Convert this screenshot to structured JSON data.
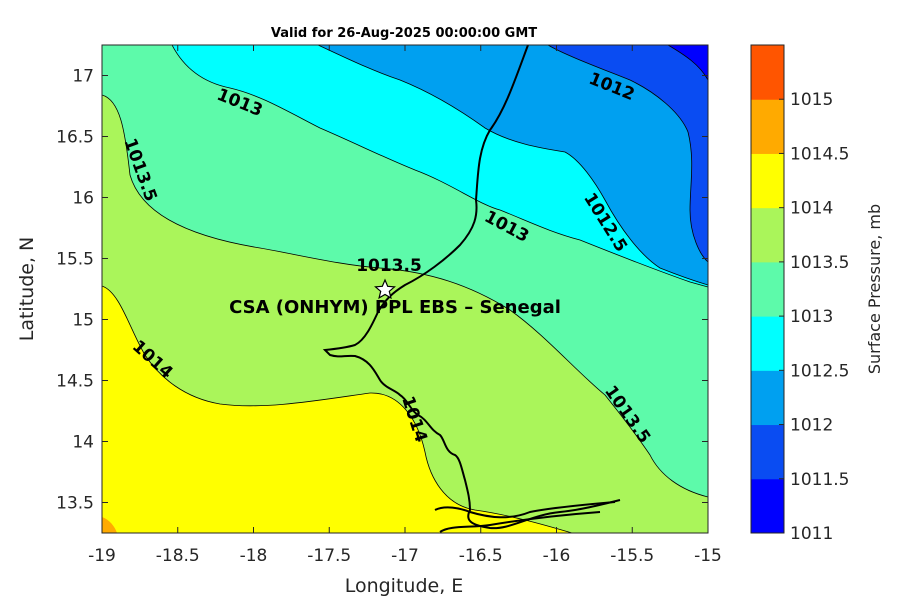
{
  "chart_data": {
    "type": "contour_map",
    "title": "Valid for 26-Aug-2025 00:00:00 GMT",
    "xlabel": "Longitude, E",
    "ylabel": "Latitude, N",
    "xlim": [
      -19,
      -15
    ],
    "ylim": [
      13.25,
      17.25
    ],
    "x_ticks": [
      "-19",
      "-18.5",
      "-18",
      "-17.5",
      "-17",
      "-16.5",
      "-16",
      "-15.5",
      "-15"
    ],
    "y_ticks": [
      "13.5",
      "14",
      "14.5",
      "15",
      "15.5",
      "16",
      "16.5",
      "17"
    ],
    "colorbar": {
      "label": "Surface Pressure, mb",
      "ticks": [
        "1011",
        "1011.5",
        "1012",
        "1012.5",
        "1013",
        "1013.5",
        "1014",
        "1014.5",
        "1015"
      ],
      "levels": [
        {
          "from": 1011.0,
          "to": 1011.5,
          "color": "#0000ff"
        },
        {
          "from": 1011.5,
          "to": 1012.0,
          "color": "#0a4cf2"
        },
        {
          "from": 1012.0,
          "to": 1012.5,
          "color": "#00a0f0"
        },
        {
          "from": 1012.5,
          "to": 1013.0,
          "color": "#00ffff"
        },
        {
          "from": 1013.0,
          "to": 1013.5,
          "color": "#5dfaaa"
        },
        {
          "from": 1013.5,
          "to": 1014.0,
          "color": "#aaf55a"
        },
        {
          "from": 1014.0,
          "to": 1014.5,
          "color": "#ffff00"
        },
        {
          "from": 1014.5,
          "to": 1015.0,
          "color": "#ffaa00"
        },
        {
          "from": 1015.0,
          "to": 1015.5,
          "color": "#ff5500"
        }
      ]
    },
    "contour_labels": [
      "1013",
      "1013.5",
      "1012",
      "1013",
      "1012.5",
      "1013.5",
      "1014",
      "1014",
      "1013.5"
    ],
    "site": {
      "name": "CSA (ONHYM) PPL EBS  – Senegal",
      "lon": -17.12,
      "lat": 15.22
    }
  }
}
